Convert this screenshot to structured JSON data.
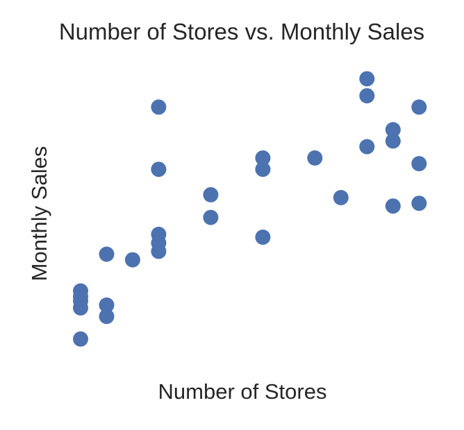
{
  "chart_data": {
    "type": "scatter",
    "title": "Number of Stores vs. Monthly Sales",
    "xlabel": "Number of Stores",
    "ylabel": "Monthly Sales",
    "grid": false,
    "legend": "none",
    "marker_color": "#4c72b0",
    "xlim": [
      0,
      14.5
    ],
    "ylim": [
      -0.5,
      11
    ],
    "points": [
      {
        "x": 1,
        "y": 1.0
      },
      {
        "x": 1,
        "y": 2.1
      },
      {
        "x": 1,
        "y": 2.35
      },
      {
        "x": 1,
        "y": 2.5
      },
      {
        "x": 1,
        "y": 2.7
      },
      {
        "x": 2,
        "y": 1.8
      },
      {
        "x": 2,
        "y": 2.2
      },
      {
        "x": 2,
        "y": 4.0
      },
      {
        "x": 3,
        "y": 3.8
      },
      {
        "x": 4,
        "y": 4.1
      },
      {
        "x": 4,
        "y": 4.4
      },
      {
        "x": 4,
        "y": 4.7
      },
      {
        "x": 4,
        "y": 7.0
      },
      {
        "x": 4,
        "y": 9.2
      },
      {
        "x": 6,
        "y": 5.3
      },
      {
        "x": 6,
        "y": 6.1
      },
      {
        "x": 8,
        "y": 4.6
      },
      {
        "x": 8,
        "y": 7.0
      },
      {
        "x": 8,
        "y": 7.4
      },
      {
        "x": 10,
        "y": 7.4
      },
      {
        "x": 11,
        "y": 6.0
      },
      {
        "x": 12,
        "y": 7.8
      },
      {
        "x": 12,
        "y": 9.6
      },
      {
        "x": 12,
        "y": 10.2
      },
      {
        "x": 13,
        "y": 5.7
      },
      {
        "x": 13,
        "y": 8.0
      },
      {
        "x": 13,
        "y": 8.4
      },
      {
        "x": 14,
        "y": 5.8
      },
      {
        "x": 14,
        "y": 7.2
      },
      {
        "x": 14,
        "y": 9.2
      }
    ]
  }
}
